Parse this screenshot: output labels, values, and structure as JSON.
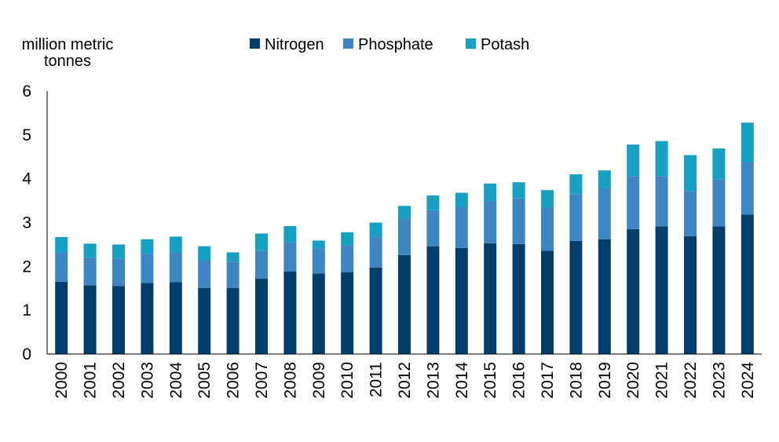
{
  "chart_data": {
    "type": "bar",
    "stacked": true,
    "ylabel_lines": [
      "million metric",
      "tonnes"
    ],
    "ylim": [
      0,
      6
    ],
    "yticks": [
      0,
      1,
      2,
      3,
      4,
      5,
      6
    ],
    "grid": false,
    "legend_position": "top",
    "categories": [
      "2000",
      "2001",
      "2002",
      "2003",
      "2004",
      "2005",
      "2006",
      "2007",
      "2008",
      "2009",
      "2010",
      "2011",
      "2012",
      "2013",
      "2014",
      "2015",
      "2016",
      "2017",
      "2018",
      "2019",
      "2020",
      "2021",
      "2022",
      "2023",
      "2024"
    ],
    "series": [
      {
        "name": "Nitrogen",
        "color": "#003f6b",
        "values": [
          1.65,
          1.57,
          1.55,
          1.62,
          1.64,
          1.51,
          1.51,
          1.72,
          1.88,
          1.84,
          1.87,
          1.97,
          2.26,
          2.46,
          2.42,
          2.53,
          2.51,
          2.36,
          2.58,
          2.62,
          2.85,
          2.91,
          2.69,
          2.91,
          3.18
        ]
      },
      {
        "name": "Phosphate",
        "color": "#3b86c3",
        "values": [
          0.67,
          0.63,
          0.62,
          0.66,
          0.68,
          0.63,
          0.59,
          0.63,
          0.67,
          0.57,
          0.6,
          0.7,
          0.83,
          0.82,
          0.93,
          0.97,
          1.04,
          0.98,
          1.07,
          1.16,
          1.21,
          1.15,
          1.03,
          1.07,
          1.2
        ]
      },
      {
        "name": "Potash",
        "color": "#16a0c1",
        "values": [
          0.35,
          0.32,
          0.33,
          0.34,
          0.36,
          0.32,
          0.22,
          0.4,
          0.37,
          0.18,
          0.31,
          0.33,
          0.29,
          0.34,
          0.33,
          0.39,
          0.37,
          0.4,
          0.45,
          0.41,
          0.72,
          0.8,
          0.82,
          0.71,
          0.9
        ]
      }
    ]
  }
}
